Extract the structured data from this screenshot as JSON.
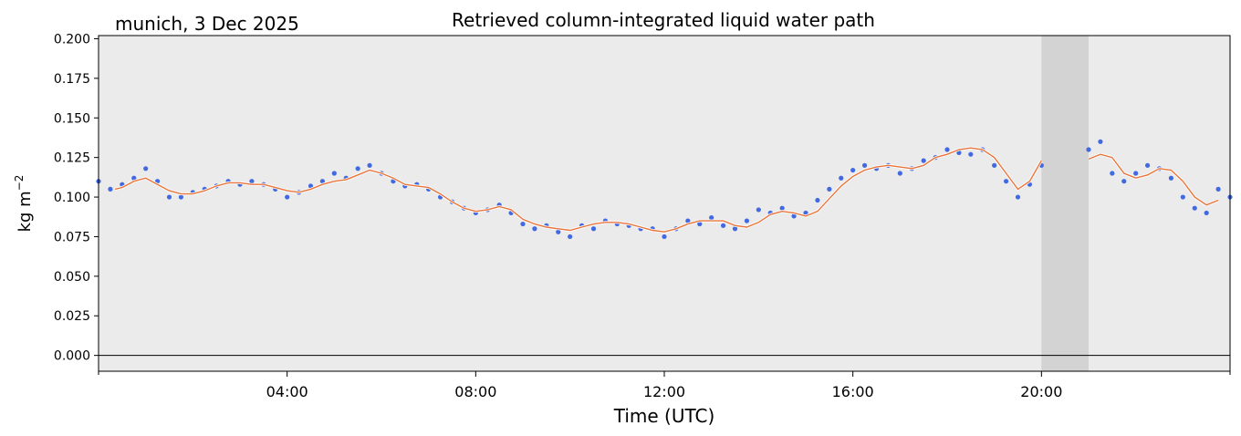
{
  "chart_data": {
    "type": "scatter",
    "title": "Retrieved column-integrated liquid water path",
    "subtitle": "munich, 3 Dec 2025",
    "xlabel": "Time (UTC)",
    "ylabel_main": "kg m",
    "ylabel_sup": "−2",
    "xlim_hours": [
      0,
      24
    ],
    "ylim": [
      -0.01,
      0.202
    ],
    "x_ticks": [
      {
        "hour": 4,
        "label": "04:00"
      },
      {
        "hour": 8,
        "label": "08:00"
      },
      {
        "hour": 12,
        "label": "12:00"
      },
      {
        "hour": 16,
        "label": "16:00"
      },
      {
        "hour": 20,
        "label": "20:00"
      }
    ],
    "y_ticks": [
      {
        "value": 0.0,
        "label": "0.000"
      },
      {
        "value": 0.025,
        "label": "0.025"
      },
      {
        "value": 0.05,
        "label": "0.050"
      },
      {
        "value": 0.075,
        "label": "0.075"
      },
      {
        "value": 0.1,
        "label": "0.100"
      },
      {
        "value": 0.125,
        "label": "0.125"
      },
      {
        "value": 0.15,
        "label": "0.150"
      },
      {
        "value": 0.175,
        "label": "0.175"
      },
      {
        "value": 0.2,
        "label": "0.200"
      }
    ],
    "grid": false,
    "zero_line": true,
    "shaded_gap_hours": [
      20.0,
      21.0
    ],
    "colors": {
      "background": "#ebebeb",
      "gap_shade": "#d3d3d3",
      "scatter": "#4169e1",
      "smooth_line": "#e8743b",
      "zero_line": "#000000"
    },
    "series": [
      {
        "kind": "scatter",
        "x_hours": [
          0.0,
          0.25,
          0.5,
          0.75,
          1.0,
          1.25,
          1.5,
          1.75,
          2.0,
          2.25,
          2.5,
          2.75,
          3.0,
          3.25,
          3.5,
          3.75,
          4.0,
          4.25,
          4.5,
          4.75,
          5.0,
          5.25,
          5.5,
          5.75,
          6.0,
          6.25,
          6.5,
          6.75,
          7.0,
          7.25,
          7.5,
          7.75,
          8.0,
          8.25,
          8.5,
          8.75,
          9.0,
          9.25,
          9.5,
          9.75,
          10.0,
          10.25,
          10.5,
          10.75,
          11.0,
          11.25,
          11.5,
          11.75,
          12.0,
          12.25,
          12.5,
          12.75,
          13.0,
          13.25,
          13.5,
          13.75,
          14.0,
          14.25,
          14.5,
          14.75,
          15.0,
          15.25,
          15.5,
          15.75,
          16.0,
          16.25,
          16.5,
          16.75,
          17.0,
          17.25,
          17.5,
          17.75,
          18.0,
          18.25,
          18.5,
          18.75,
          19.0,
          19.25,
          19.5,
          19.75,
          20.0,
          21.0,
          21.25,
          21.5,
          21.75,
          22.0,
          22.25,
          22.5,
          22.75,
          23.0,
          23.25,
          23.5,
          23.75,
          24.0
        ],
        "values": [
          0.11,
          0.105,
          0.108,
          0.112,
          0.118,
          0.11,
          0.1,
          0.1,
          0.103,
          0.105,
          0.107,
          0.11,
          0.108,
          0.11,
          0.108,
          0.105,
          0.1,
          0.103,
          0.107,
          0.11,
          0.115,
          0.112,
          0.118,
          0.12,
          0.115,
          0.11,
          0.107,
          0.108,
          0.105,
          0.1,
          0.097,
          0.093,
          0.09,
          0.092,
          0.095,
          0.09,
          0.083,
          0.08,
          0.082,
          0.078,
          0.075,
          0.082,
          0.08,
          0.085,
          0.083,
          0.082,
          0.08,
          0.08,
          0.075,
          0.08,
          0.085,
          0.083,
          0.087,
          0.082,
          0.08,
          0.085,
          0.092,
          0.09,
          0.093,
          0.088,
          0.09,
          0.098,
          0.105,
          0.112,
          0.117,
          0.12,
          0.118,
          0.12,
          0.115,
          0.118,
          0.123,
          0.125,
          0.13,
          0.128,
          0.127,
          0.13,
          0.12,
          0.11,
          0.1,
          0.108,
          0.12,
          0.13,
          0.135,
          0.115,
          0.11,
          0.115,
          0.12,
          0.118,
          0.112,
          0.1,
          0.093,
          0.09,
          0.105,
          0.1
        ]
      },
      {
        "kind": "line",
        "x_hours": [
          0.35,
          0.5,
          0.75,
          1.0,
          1.25,
          1.5,
          1.75,
          2.0,
          2.25,
          2.5,
          2.75,
          3.0,
          3.25,
          3.5,
          3.75,
          4.0,
          4.25,
          4.5,
          4.75,
          5.0,
          5.25,
          5.5,
          5.75,
          6.0,
          6.25,
          6.5,
          6.75,
          7.0,
          7.25,
          7.5,
          7.75,
          8.0,
          8.25,
          8.5,
          8.75,
          9.0,
          9.25,
          9.5,
          9.75,
          10.0,
          10.25,
          10.5,
          10.75,
          11.0,
          11.25,
          11.5,
          11.75,
          12.0,
          12.25,
          12.5,
          12.75,
          13.0,
          13.25,
          13.5,
          13.75,
          14.0,
          14.25,
          14.5,
          14.75,
          15.0,
          15.25,
          15.5,
          15.75,
          16.0,
          16.25,
          16.5,
          16.75,
          17.0,
          17.25,
          17.5,
          17.75,
          18.0,
          18.25,
          18.5,
          18.75,
          19.0,
          19.25,
          19.5,
          19.75,
          20.0
        ],
        "values": [
          0.105,
          0.106,
          0.11,
          0.112,
          0.108,
          0.104,
          0.102,
          0.102,
          0.104,
          0.107,
          0.109,
          0.109,
          0.108,
          0.108,
          0.106,
          0.104,
          0.103,
          0.105,
          0.108,
          0.11,
          0.111,
          0.114,
          0.117,
          0.115,
          0.112,
          0.108,
          0.107,
          0.106,
          0.102,
          0.097,
          0.093,
          0.091,
          0.092,
          0.094,
          0.092,
          0.086,
          0.083,
          0.081,
          0.08,
          0.079,
          0.081,
          0.083,
          0.084,
          0.084,
          0.083,
          0.081,
          0.079,
          0.078,
          0.08,
          0.083,
          0.085,
          0.085,
          0.085,
          0.082,
          0.081,
          0.084,
          0.089,
          0.091,
          0.09,
          0.088,
          0.091,
          0.099,
          0.107,
          0.113,
          0.117,
          0.119,
          0.12,
          0.119,
          0.118,
          0.12,
          0.125,
          0.127,
          0.13,
          0.131,
          0.13,
          0.125,
          0.115,
          0.105,
          0.11,
          0.123
        ]
      },
      {
        "kind": "line",
        "x_hours": [
          21.0,
          21.25,
          21.5,
          21.75,
          22.0,
          22.25,
          22.5,
          22.75,
          23.0,
          23.25,
          23.5,
          23.75
        ],
        "values": [
          0.124,
          0.127,
          0.125,
          0.115,
          0.112,
          0.114,
          0.118,
          0.117,
          0.11,
          0.1,
          0.095,
          0.098
        ]
      }
    ]
  }
}
